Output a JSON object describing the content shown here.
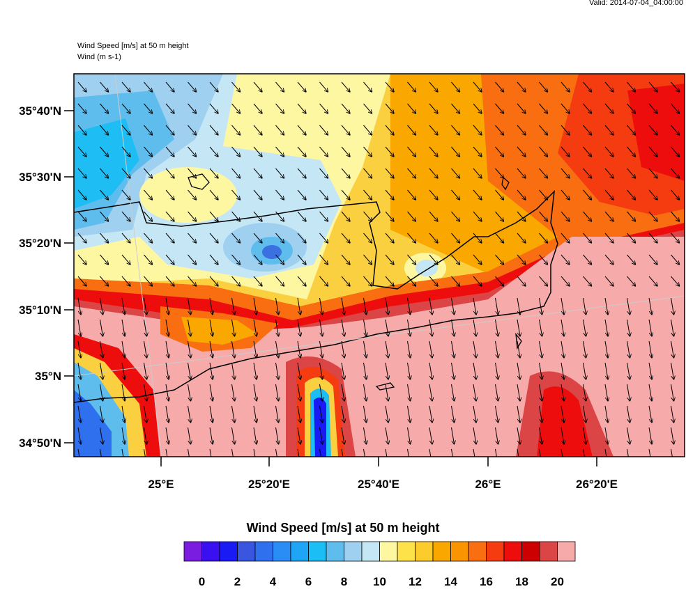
{
  "header": {
    "valid": "Valid: 2014-07-04_04:00:00",
    "title": "Wind Speed [m/s] at 50 m height",
    "subtitle": "Wind   (m s-1)"
  },
  "map": {
    "lat_labels": [
      "35°40'N",
      "35°30'N",
      "35°20'N",
      "35°10'N",
      "35°N",
      "34°50'N"
    ],
    "lon_labels": [
      "25°E",
      "25°20'E",
      "25°40'E",
      "26°E",
      "26°20'E"
    ],
    "wind_direction": "north-northwest (arrows pointing south-southeast)"
  },
  "colorbar": {
    "title": "Wind Speed [m/s] at 50 m height",
    "tick_labels": [
      "0",
      "2",
      "4",
      "6",
      "8",
      "10",
      "12",
      "14",
      "16",
      "18",
      "20"
    ],
    "colors": [
      "#7b1de0",
      "#3a10f0",
      "#1a1af5",
      "#3a55e0",
      "#2f70ee",
      "#2a8cf5",
      "#1ea5f5",
      "#1bbef5",
      "#5fbdee",
      "#9fd0ef",
      "#c5e6f5",
      "#fef7a1",
      "#fde24a",
      "#fccb2c",
      "#faa800",
      "#fa9400",
      "#f86e10",
      "#f53b10",
      "#ee0d0d",
      "#cc0000",
      "#dc4545",
      "#f7aaaa"
    ]
  }
}
